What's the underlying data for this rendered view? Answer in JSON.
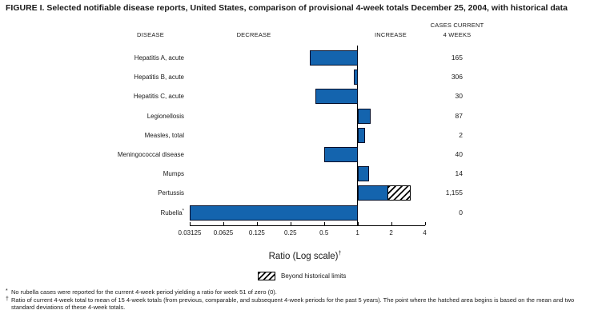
{
  "figure": {
    "title": "FIGURE I. Selected notifiable disease reports, United States, comparison of provisional 4-week totals December 25, 2004, with historical data",
    "columns": {
      "disease": "DISEASE",
      "decrease": "DECREASE",
      "increase": "INCREASE",
      "cases_line1": "CASES CURRENT",
      "cases_line2": "4 WEEKS"
    },
    "xaxis_title": "Ratio (Log scale)",
    "xaxis_title_sup": "†",
    "legend_label": "Beyond historical limits",
    "footnotes": [
      {
        "marker": "*",
        "text": "No rubella cases were reported for the current 4-week period yielding a ratio for week 51 of zero (0)."
      },
      {
        "marker": "†",
        "text": "Ratio of current 4-week total to mean of 15 4-week totals (from previous, comparable, and subsequent 4-week periods for the past 5 years). The point where the hatched area begins is based on the mean and two standard deviations of these 4-week totals."
      }
    ],
    "colors": {
      "bar_fill": "#1464ae",
      "bar_border": "#000c28",
      "axis": "#000000"
    }
  },
  "chart_data": {
    "type": "bar",
    "orientation": "horizontal",
    "scale": "log2",
    "title": "FIGURE I. Selected notifiable disease reports, United States, comparison of provisional 4-week totals December 25, 2004, with historical data",
    "xlabel": "Ratio (Log scale)",
    "xlim": [
      0.03125,
      4
    ],
    "x_ticks": [
      "0.03125",
      "0.0625",
      "0.125",
      "0.25",
      "0.5",
      "1",
      "2",
      "4"
    ],
    "baseline_value": 1,
    "legend": [
      "Beyond historical limits"
    ],
    "rows": [
      {
        "label": "Hepatitis A, acute",
        "ratio": 0.37,
        "cases": "165"
      },
      {
        "label": "Hepatitis B, acute",
        "ratio": 0.92,
        "cases": "306"
      },
      {
        "label": "Hepatitis C, acute",
        "ratio": 0.42,
        "cases": "30"
      },
      {
        "label": "Legionellosis",
        "ratio": 1.3,
        "cases": "87"
      },
      {
        "label": "Measles, total",
        "ratio": 1.16,
        "cases": "2"
      },
      {
        "label": "Meningococcal disease",
        "ratio": 0.5,
        "cases": "40"
      },
      {
        "label": "Mumps",
        "ratio": 1.27,
        "cases": "14"
      },
      {
        "label": "Pertussis",
        "ratio": 3.0,
        "hatch_from": 1.9,
        "cases": "1,155"
      },
      {
        "label": "Rubella",
        "label_sup": "*",
        "ratio": 0.03125,
        "cases": "0"
      }
    ]
  }
}
